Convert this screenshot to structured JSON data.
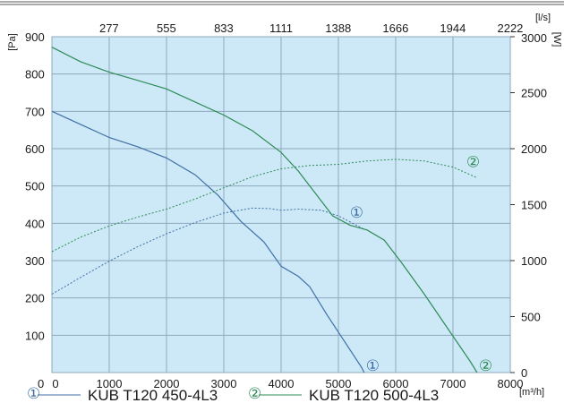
{
  "chart_data": {
    "type": "line",
    "x_unit": "[m³/h]",
    "x_range": [
      0,
      8000
    ],
    "x_ticks": [
      "0",
      "1000",
      "2000",
      "3000",
      "4000",
      "5000",
      "6000",
      "7000",
      "8000"
    ],
    "x_top_unit": "[l/s]",
    "x_top_ticks": [
      "277",
      "555",
      "833",
      "1111",
      "1388",
      "1666",
      "1944",
      "2222"
    ],
    "y_left_unit": "[Pa]",
    "y_left_range": [
      0,
      900
    ],
    "y_left_ticks": [
      "100",
      "200",
      "300",
      "400",
      "500",
      "600",
      "700",
      "800",
      "900"
    ],
    "y_right_unit": "[W]",
    "y_right_range": [
      0,
      3000
    ],
    "y_right_ticks": [
      "0",
      "500",
      "1000",
      "1500",
      "2000",
      "2500",
      "3000"
    ],
    "grid": true,
    "colors": {
      "background": "#cde9f7",
      "grid": "#8fa9bd",
      "series1": "#3f6fa6",
      "series2": "#2e8b57"
    },
    "series": [
      {
        "name": "KUB T120 450-4L3",
        "marker": "①",
        "color": "#3f6fa6",
        "pressure_pa": [
          [
            0,
            700
          ],
          [
            500,
            665
          ],
          [
            1000,
            630
          ],
          [
            1500,
            605
          ],
          [
            2000,
            575
          ],
          [
            2500,
            530
          ],
          [
            2900,
            475
          ],
          [
            3300,
            405
          ],
          [
            3700,
            350
          ],
          [
            4000,
            285
          ],
          [
            4300,
            258
          ],
          [
            4500,
            230
          ],
          [
            4800,
            155
          ],
          [
            5100,
            85
          ],
          [
            5400,
            15
          ],
          [
            5450,
            0
          ]
        ],
        "power_w": [
          [
            0,
            700
          ],
          [
            500,
            850
          ],
          [
            1000,
            995
          ],
          [
            1500,
            1125
          ],
          [
            2000,
            1240
          ],
          [
            2500,
            1340
          ],
          [
            3000,
            1425
          ],
          [
            3500,
            1470
          ],
          [
            3800,
            1465
          ],
          [
            4000,
            1450
          ],
          [
            4300,
            1460
          ],
          [
            4700,
            1450
          ],
          [
            5000,
            1400
          ],
          [
            5450,
            1280
          ]
        ]
      },
      {
        "name": "KUB T120 500-4L3",
        "marker": "②",
        "color": "#2e8b57",
        "pressure_pa": [
          [
            0,
            872
          ],
          [
            500,
            833
          ],
          [
            1000,
            805
          ],
          [
            1500,
            783
          ],
          [
            2000,
            760
          ],
          [
            2500,
            725
          ],
          [
            3000,
            690
          ],
          [
            3500,
            648
          ],
          [
            4000,
            590
          ],
          [
            4300,
            540
          ],
          [
            4600,
            480
          ],
          [
            4900,
            420
          ],
          [
            5200,
            395
          ],
          [
            5500,
            382
          ],
          [
            5800,
            355
          ],
          [
            6100,
            295
          ],
          [
            6500,
            210
          ],
          [
            6900,
            120
          ],
          [
            7300,
            30
          ],
          [
            7420,
            0
          ]
        ],
        "power_w": [
          [
            0,
            1080
          ],
          [
            500,
            1210
          ],
          [
            1000,
            1310
          ],
          [
            1500,
            1390
          ],
          [
            2000,
            1460
          ],
          [
            2500,
            1550
          ],
          [
            3000,
            1650
          ],
          [
            3500,
            1750
          ],
          [
            4000,
            1820
          ],
          [
            4500,
            1850
          ],
          [
            5000,
            1860
          ],
          [
            5500,
            1890
          ],
          [
            6000,
            1905
          ],
          [
            6500,
            1890
          ],
          [
            7000,
            1835
          ],
          [
            7420,
            1740
          ]
        ]
      }
    ]
  }
}
